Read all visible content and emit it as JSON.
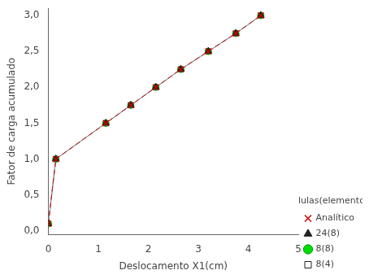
{
  "chart_data": {
    "type": "line",
    "x": [
      0.0,
      0.15,
      1.15,
      1.65,
      2.15,
      2.65,
      3.2,
      3.75,
      4.25
    ],
    "series": [
      {
        "name": "8(4)",
        "color": "#999999",
        "marker": "square",
        "line_style": "solid",
        "values": [
          0.1,
          1.0,
          1.5,
          1.75,
          2.0,
          2.25,
          2.5,
          2.75,
          3.0
        ]
      },
      {
        "name": "8(8)",
        "color": "#999999",
        "marker": "circle",
        "line_style": "solid",
        "values": [
          0.1,
          1.0,
          1.5,
          1.75,
          2.0,
          2.25,
          2.5,
          2.75,
          3.0
        ]
      },
      {
        "name": "24(8)",
        "color": "#999999",
        "marker": "triangle",
        "line_style": "solid",
        "values": [
          0.1,
          1.0,
          1.5,
          1.75,
          2.0,
          2.25,
          2.5,
          2.75,
          3.0
        ]
      },
      {
        "name": "Analítico",
        "color": "#cc0000",
        "marker": "x",
        "line_style": "dashed",
        "values": [
          0.1,
          1.0,
          1.5,
          1.75,
          2.0,
          2.25,
          2.5,
          2.75,
          3.0
        ]
      }
    ],
    "xlabel": "Deslocamento X1(cm)",
    "ylabel": "Fator de carga acumulado",
    "legend_title": "células(elementos)",
    "legend": "lower right",
    "xlim": [
      0,
      5
    ],
    "ylim": [
      -0.05,
      3.1
    ],
    "xticks": [
      0,
      1,
      2,
      3,
      4,
      5
    ],
    "yticks": [
      {
        "value": 0.0,
        "label": "0,0"
      },
      {
        "value": 0.5,
        "label": "0,5"
      },
      {
        "value": 1.0,
        "label": "1,0"
      },
      {
        "value": 1.5,
        "label": "1,5"
      },
      {
        "value": 2.0,
        "label": "2,0"
      },
      {
        "value": 2.5,
        "label": "2,5"
      },
      {
        "value": 3.0,
        "label": "3,0"
      }
    ],
    "grid": false
  }
}
